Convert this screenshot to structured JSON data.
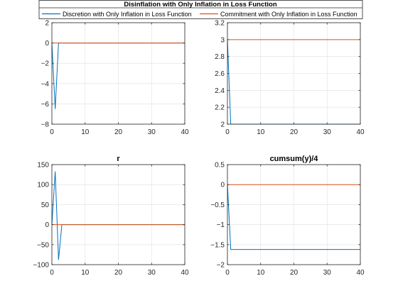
{
  "figure": {
    "title": "Disinflation with Only Inflation in Loss Function",
    "legend": [
      {
        "label": "Discretion with Only Inflation in Loss Function",
        "color": "#0072BD"
      },
      {
        "label": "Commitment with Only Inflation in Loss Function",
        "color": "#D95319"
      }
    ]
  },
  "chart_data": [
    {
      "type": "line",
      "title": "",
      "xlim": [
        0,
        40
      ],
      "ylim": [
        -8,
        2
      ],
      "xticks": [
        0,
        10,
        20,
        30,
        40
      ],
      "yticks": [
        -8,
        -6,
        -4,
        -2,
        0,
        2
      ],
      "grid": true,
      "series": [
        {
          "name": "Discretion with Only Inflation in Loss Function",
          "color": "#0072BD",
          "x": [
            0,
            1,
            2,
            3,
            40
          ],
          "y": [
            0,
            -6.5,
            0,
            0,
            0
          ]
        },
        {
          "name": "Commitment with Only Inflation in Loss Function",
          "color": "#D95319",
          "x": [
            0,
            40
          ],
          "y": [
            0,
            0
          ]
        }
      ]
    },
    {
      "type": "line",
      "title": "",
      "xlim": [
        0,
        40
      ],
      "ylim": [
        2,
        3.2
      ],
      "xticks": [
        0,
        10,
        20,
        30,
        40
      ],
      "yticks": [
        2,
        2.2,
        2.4,
        2.6,
        2.8,
        3,
        3.2
      ],
      "grid": true,
      "series": [
        {
          "name": "Discretion with Only Inflation in Loss Function",
          "color": "#0072BD",
          "x": [
            0,
            1,
            40
          ],
          "y": [
            3,
            2,
            2
          ]
        },
        {
          "name": "Commitment with Only Inflation in Loss Function",
          "color": "#D95319",
          "x": [
            0,
            40
          ],
          "y": [
            3,
            3
          ]
        }
      ]
    },
    {
      "type": "line",
      "title": "r",
      "xlim": [
        0,
        40
      ],
      "ylim": [
        -100,
        150
      ],
      "xticks": [
        0,
        10,
        20,
        30,
        40
      ],
      "yticks": [
        -100,
        -50,
        0,
        50,
        100,
        150
      ],
      "grid": true,
      "series": [
        {
          "name": "Discretion with Only Inflation in Loss Function",
          "color": "#0072BD",
          "x": [
            0,
            1,
            2,
            3,
            40
          ],
          "y": [
            0,
            133,
            -88,
            0,
            0
          ]
        },
        {
          "name": "Commitment with Only Inflation in Loss Function",
          "color": "#D95319",
          "x": [
            0,
            40
          ],
          "y": [
            0,
            0
          ]
        }
      ]
    },
    {
      "type": "line",
      "title": "cumsum(y)/4",
      "xlim": [
        0,
        40
      ],
      "ylim": [
        -2,
        0.5
      ],
      "xticks": [
        0,
        10,
        20,
        30,
        40
      ],
      "yticks": [
        -2,
        -1.5,
        -1,
        -0.5,
        0,
        0.5
      ],
      "grid": true,
      "series": [
        {
          "name": "Discretion with Only Inflation in Loss Function",
          "color": "#0072BD",
          "x": [
            0,
            1,
            40
          ],
          "y": [
            0,
            -1.62,
            -1.62
          ]
        },
        {
          "name": "Commitment with Only Inflation in Loss Function",
          "color": "#D95319",
          "x": [
            0,
            40
          ],
          "y": [
            0,
            0
          ]
        }
      ]
    }
  ]
}
